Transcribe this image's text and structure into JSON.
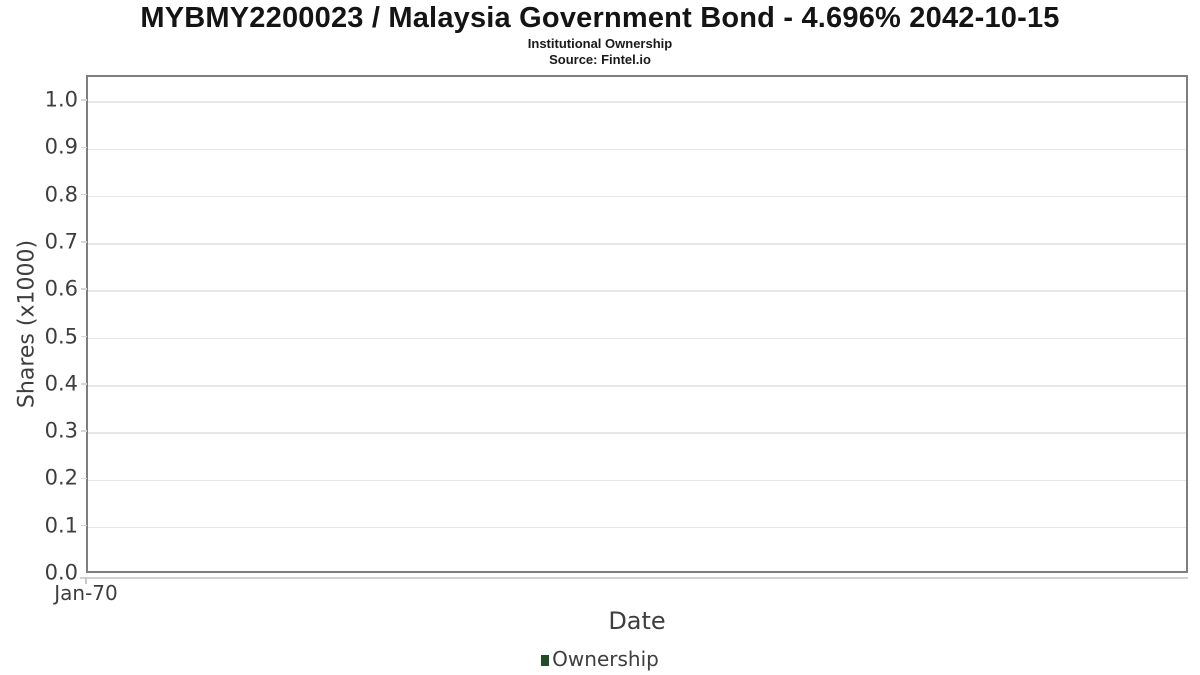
{
  "header": {
    "title": "MYBMY2200023 / Malaysia Government Bond - 4.696% 2042-10-15",
    "subtitle": "Institutional Ownership",
    "source": "Source: Fintel.io"
  },
  "chart_data": {
    "type": "line",
    "title": "MYBMY2200023 / Malaysia Government Bond - 4.696% 2042-10-15",
    "subtitle": "Institutional Ownership",
    "source": "Source: Fintel.io",
    "xlabel": "Date",
    "ylabel": "Shares (x1000)",
    "x_tick_labels": [
      "Jan-70"
    ],
    "y_tick_labels": [
      "0.0",
      "0.1",
      "0.2",
      "0.3",
      "0.4",
      "0.5",
      "0.6",
      "0.7",
      "0.8",
      "0.9",
      "1.0"
    ],
    "y_tick_values": [
      0.0,
      0.1,
      0.2,
      0.3,
      0.4,
      0.5,
      0.6,
      0.7,
      0.8,
      0.9,
      1.0
    ],
    "ylim": [
      0,
      1.053
    ],
    "grid": "horizontal",
    "legend_position": "bottom-center",
    "legend": [
      {
        "label": "Ownership",
        "color": "#1f4d2a"
      }
    ],
    "series": [
      {
        "name": "Ownership",
        "x": [],
        "y": []
      }
    ]
  },
  "colors": {
    "legend_swatch": "#1f4d2a",
    "plot_border": "#7e7e7e",
    "gridline": "#e7e7e7",
    "axis_line": "#d2d2d2",
    "text": "#3e3e3e"
  }
}
